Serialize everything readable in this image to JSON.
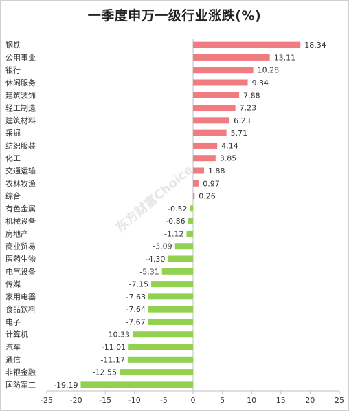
{
  "chart_data": {
    "type": "bar",
    "orientation": "horizontal",
    "title": "一季度申万一级行业涨跌(%)",
    "categories": [
      "钢铁",
      "公用事业",
      "银行",
      "休闲服务",
      "建筑装饰",
      "轻工制造",
      "建筑材料",
      "采掘",
      "纺织服装",
      "化工",
      "交通运输",
      "农林牧渔",
      "综合",
      "有色金属",
      "机械设备",
      "房地产",
      "商业贸易",
      "医药生物",
      "电气设备",
      "传媒",
      "家用电器",
      "食品饮料",
      "电子",
      "计算机",
      "汽车",
      "通信",
      "非银金融",
      "国防军工"
    ],
    "values": [
      18.34,
      13.11,
      10.28,
      9.34,
      7.88,
      7.23,
      6.23,
      5.71,
      4.14,
      3.85,
      1.88,
      0.97,
      0.26,
      -0.52,
      -0.86,
      -1.12,
      -3.09,
      -4.3,
      -5.31,
      -7.15,
      -7.63,
      -7.64,
      -7.67,
      -10.33,
      -11.01,
      -11.17,
      -12.55,
      -19.19
    ],
    "value_labels": [
      "18.34",
      "13.11",
      "10.28",
      "9.34",
      "7.88",
      "7.23",
      "6.23",
      "5.71",
      "4.14",
      "3.85",
      "1.88",
      "0.97",
      "0.26",
      "-0.52",
      "-0.86",
      "-1.12",
      "-3.09",
      "-4.30",
      "-5.31",
      "-7.15",
      "-7.63",
      "-7.64",
      "-7.67",
      "-10.33",
      "-11.01",
      "-11.17",
      "-12.55",
      "-19.19"
    ],
    "xlim": [
      -25,
      25
    ],
    "xticks": [
      -25,
      -20,
      -15,
      -10,
      -5,
      0,
      5,
      10,
      15,
      20,
      25
    ],
    "grid": false,
    "colors": {
      "positive": "#f07c82",
      "negative": "#92d050"
    }
  },
  "watermark": "东方财富Choice"
}
